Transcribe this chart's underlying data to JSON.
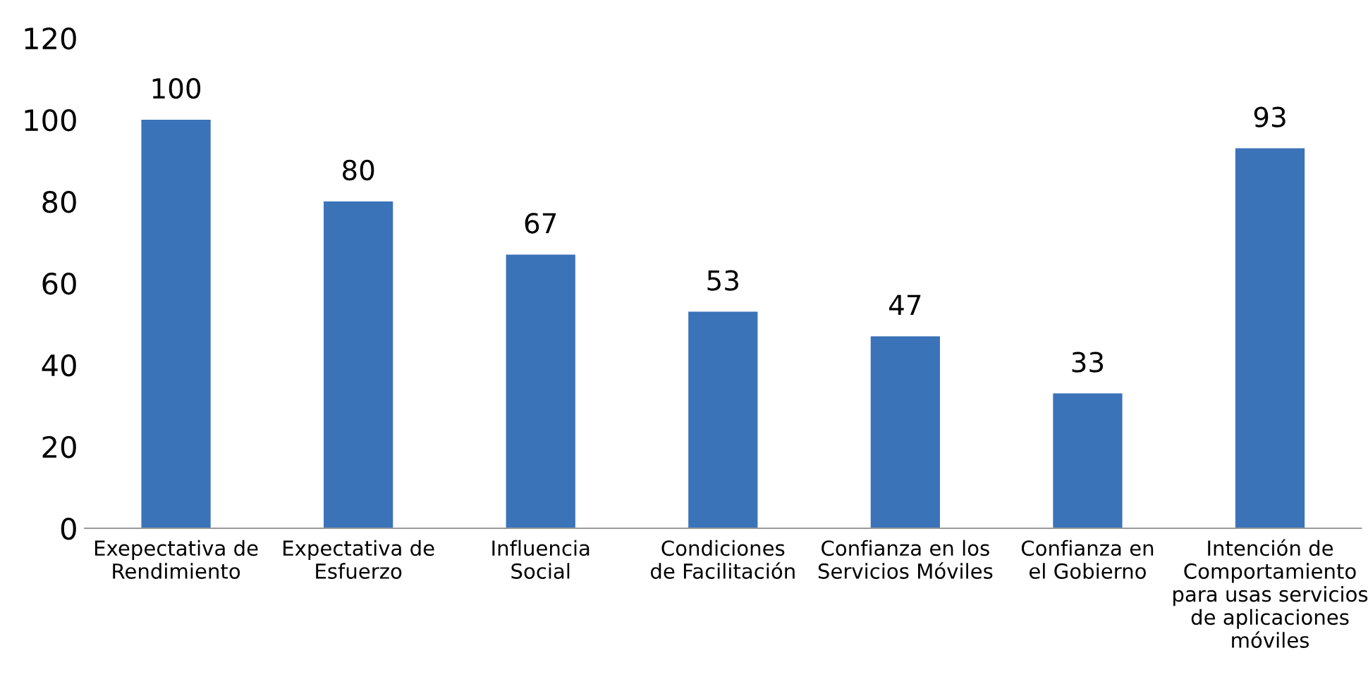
{
  "chart_data": {
    "type": "bar",
    "categories": [
      "Exepectativa de\nRendimiento",
      "Expectativa de\nEsfuerzo",
      "Influencia\nSocial",
      "Condiciones\nde Facilitación",
      "Confianza en los\nServicios Móviles",
      "Confianza en\nel Gobierno",
      "Intención de\nComportamiento\npara usas servicios\nde aplicaciones\nmóviles"
    ],
    "values": [
      100,
      80,
      67,
      53,
      47,
      33,
      93
    ],
    "color": "#3b73b9",
    "ylim": [
      0,
      120
    ],
    "yticks": [
      0,
      20,
      40,
      60,
      80,
      100,
      120
    ],
    "data_labels": true,
    "grid": false,
    "legend": false
  }
}
